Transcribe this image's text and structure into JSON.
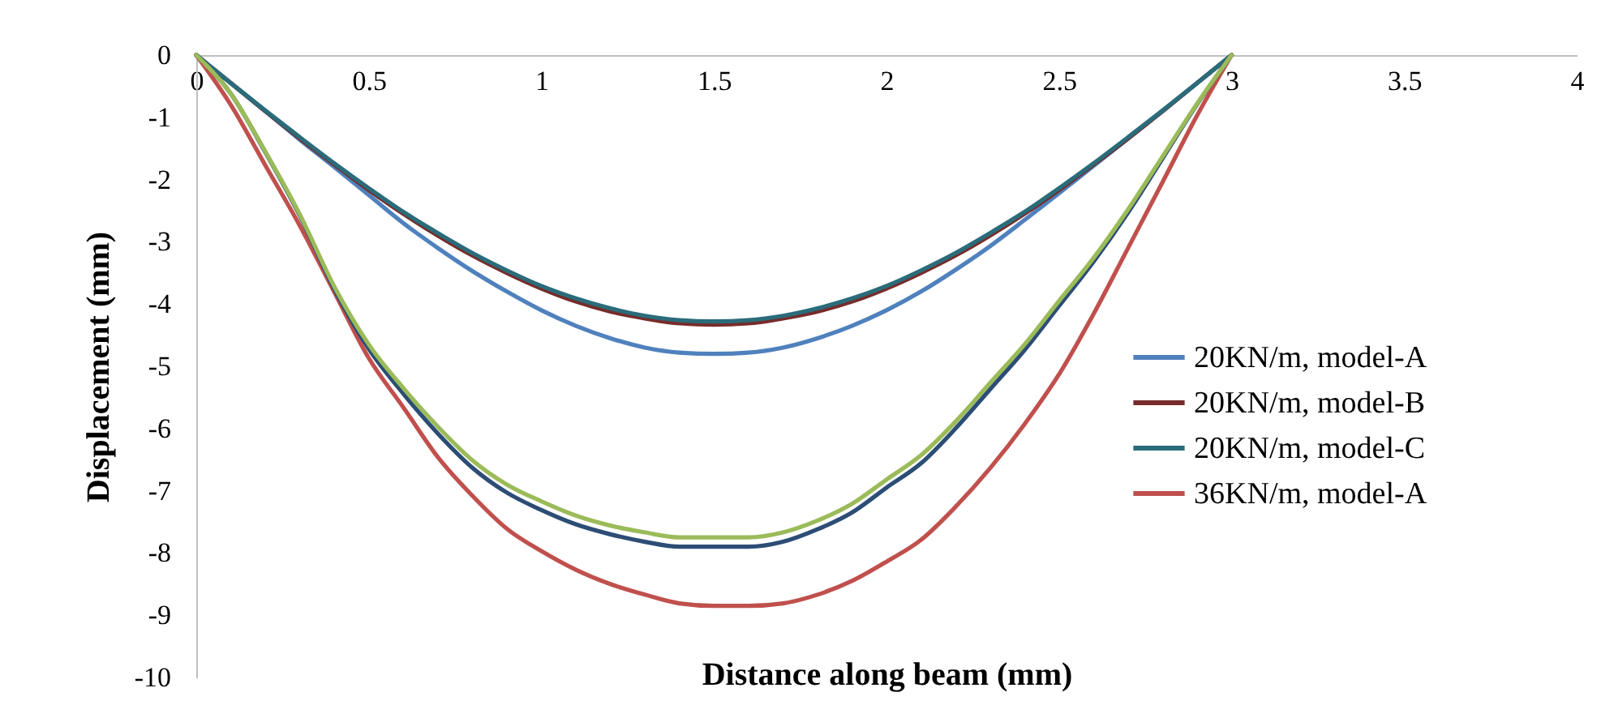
{
  "chart_data": {
    "type": "line",
    "xlabel": "Distance along beam (mm)",
    "ylabel": "Displacement  (mm)",
    "x": [
      0,
      0.1,
      0.2,
      0.3,
      0.4,
      0.5,
      0.6,
      0.7,
      0.8,
      0.9,
      1,
      1.1,
      1.2,
      1.3,
      1.4,
      1.5,
      1.6,
      1.7,
      1.8,
      1.9,
      2,
      2.1,
      2.2,
      2.3,
      2.4,
      2.5,
      2.6,
      2.7,
      2.8,
      2.9,
      3
    ],
    "series": [
      {
        "name": "20KN/m, model-A",
        "color": "#4f81bd",
        "values": [
          0,
          -0.45,
          -0.9,
          -1.36,
          -1.8,
          -2.25,
          -2.7,
          -3.1,
          -3.47,
          -3.8,
          -4.1,
          -4.35,
          -4.55,
          -4.7,
          -4.78,
          -4.8,
          -4.78,
          -4.7,
          -4.55,
          -4.35,
          -4.1,
          -3.8,
          -3.45,
          -3.07,
          -2.65,
          -2.22,
          -1.78,
          -1.34,
          -0.9,
          -0.45,
          0
        ]
      },
      {
        "name": "20KN/m, model-B",
        "color": "#772c2a",
        "values": [
          0,
          -0.45,
          -0.9,
          -1.34,
          -1.76,
          -2.17,
          -2.55,
          -2.9,
          -3.22,
          -3.5,
          -3.75,
          -3.96,
          -4.12,
          -4.23,
          -4.31,
          -4.33,
          -4.31,
          -4.23,
          -4.12,
          -3.96,
          -3.75,
          -3.5,
          -3.22,
          -2.9,
          -2.55,
          -2.17,
          -1.76,
          -1.34,
          -0.9,
          -0.45,
          0
        ]
      },
      {
        "name": "20KN/m, model-C",
        "color": "#2a6c7a",
        "values": [
          0,
          -0.45,
          -0.89,
          -1.32,
          -1.74,
          -2.14,
          -2.52,
          -2.86,
          -3.18,
          -3.46,
          -3.71,
          -3.91,
          -4.07,
          -4.19,
          -4.26,
          -4.28,
          -4.26,
          -4.19,
          -4.07,
          -3.91,
          -3.71,
          -3.46,
          -3.18,
          -2.86,
          -2.52,
          -2.14,
          -1.74,
          -1.32,
          -0.89,
          -0.45,
          0
        ]
      },
      {
        "name": "36KN/m, model-A",
        "color": "#c0504d",
        "values": [
          0,
          -0.8,
          -1.77,
          -2.74,
          -3.81,
          -4.87,
          -5.66,
          -6.46,
          -7.08,
          -7.61,
          -7.97,
          -8.27,
          -8.5,
          -8.67,
          -8.81,
          -8.85,
          -8.85,
          -8.81,
          -8.67,
          -8.45,
          -8.14,
          -7.79,
          -7.26,
          -6.64,
          -5.93,
          -5.13,
          -4.16,
          -3.1,
          -2.04,
          -0.97,
          0
        ]
      },
      {
        "color": "#2c4d75",
        "values": [
          0,
          -0.62,
          -1.56,
          -2.58,
          -3.76,
          -4.72,
          -5.44,
          -6.08,
          -6.63,
          -7.03,
          -7.31,
          -7.54,
          -7.7,
          -7.82,
          -7.9,
          -7.9,
          -7.9,
          -7.82,
          -7.62,
          -7.35,
          -6.95,
          -6.56,
          -6,
          -5.37,
          -4.74,
          -4.03,
          -3.32,
          -2.53,
          -1.66,
          -0.79,
          0
        ]
      },
      {
        "color": "#9bbb59",
        "values": [
          0,
          -0.62,
          -1.55,
          -2.56,
          -3.72,
          -4.65,
          -5.35,
          -5.97,
          -6.51,
          -6.9,
          -7.17,
          -7.4,
          -7.56,
          -7.67,
          -7.75,
          -7.75,
          -7.75,
          -7.67,
          -7.48,
          -7.21,
          -6.82,
          -6.43,
          -5.89,
          -5.27,
          -4.65,
          -3.95,
          -3.26,
          -2.48,
          -1.63,
          -0.78,
          0
        ]
      }
    ],
    "xlim": [
      0,
      4
    ],
    "xticks": [
      0,
      0.5,
      1,
      1.5,
      2,
      2.5,
      3,
      3.5,
      4
    ],
    "ylim": [
      -10,
      0
    ],
    "yticks": [
      0,
      -1,
      -2,
      -3,
      -4,
      -5,
      -6,
      -7,
      -8,
      -9,
      -10
    ],
    "legend": "right",
    "line_style": "solid"
  }
}
